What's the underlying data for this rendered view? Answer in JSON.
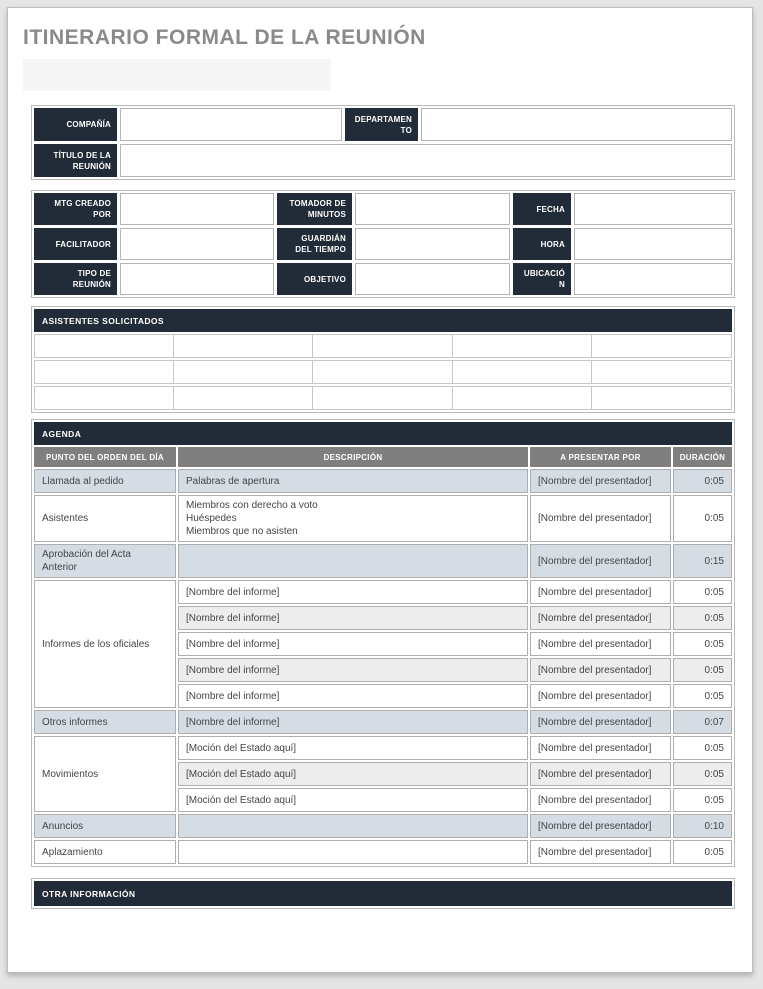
{
  "page_title": "ITINERARIO FORMAL DE LA REUNIÓN",
  "colors": {
    "dark_navy": "#222B38",
    "column_header_gray": "#7F7F7F",
    "row_blue_gray": "#D6DCE4",
    "row_alt_gray": "#EDEDED",
    "title_gray": "#8A8A8A"
  },
  "company_section": {
    "company_label": "COMPAÑÍA",
    "company_value": "",
    "department_label": "DEPARTAMEN\nTO",
    "department_value": "",
    "meeting_title_label": "TÍTULO DE LA\nREUNIÓN",
    "meeting_title_value": ""
  },
  "details_section": {
    "row1": {
      "l1": "MTG CREADO\nPOR",
      "v1": "",
      "l2": "TOMADOR DE\nMINUTOS",
      "v2": "",
      "l3": "FECHA",
      "v3": ""
    },
    "row2": {
      "l1": "FACILITADOR",
      "v1": "",
      "l2": "GUARDIÁN\nDEL TIEMPO",
      "v2": "",
      "l3": "HORA",
      "v3": ""
    },
    "row3": {
      "l1": "TIPO DE REUNIÓN",
      "v1": "",
      "l2": "OBJETIVO",
      "v2": "",
      "l3": "UBICACIÓ\nN",
      "v3": ""
    }
  },
  "attendees_section": {
    "header": "ASISTENTES SOLICITADOS",
    "rows": 3,
    "cols": 5
  },
  "agenda_section": {
    "header": "AGENDA",
    "columns": [
      "PUNTO DEL ORDEN DEL DÍA",
      "DESCRIPCIÓN",
      "A PRESENTAR POR",
      "DURACIÓN"
    ],
    "rows": [
      {
        "type": "simple",
        "shade": "blue",
        "item": "Llamada al pedido",
        "description": "Palabras de apertura",
        "presenter": "[Nombre del presentador]",
        "duration": "0:05"
      },
      {
        "type": "simple",
        "shade": "white",
        "item": "Asistentes",
        "description": "Miembros con derecho a voto\nHuéspedes\nMiembros que no asisten",
        "presenter": "[Nombre del presentador]",
        "duration": "0:05"
      },
      {
        "type": "simple",
        "shade": "blue",
        "item": "Aprobación del Acta Anterior",
        "description": "",
        "presenter": "[Nombre del presentador]",
        "duration": "0:15"
      },
      {
        "type": "group",
        "item": "Informes de los oficiales",
        "subrows": [
          {
            "shade": "white",
            "description": "[Nombre del informe]",
            "presenter": "[Nombre del presentador]",
            "duration": "0:05"
          },
          {
            "shade": "gray",
            "description": "[Nombre del informe]",
            "presenter": "[Nombre del presentador]",
            "duration": "0:05"
          },
          {
            "shade": "white",
            "description": "[Nombre del informe]",
            "presenter": "[Nombre del presentador]",
            "duration": "0:05"
          },
          {
            "shade": "gray",
            "description": "[Nombre del informe]",
            "presenter": "[Nombre del presentador]",
            "duration": "0:05"
          },
          {
            "shade": "white",
            "description": "[Nombre del informe]",
            "presenter": "[Nombre del presentador]",
            "duration": "0:05"
          }
        ]
      },
      {
        "type": "simple",
        "shade": "blue",
        "item": "Otros informes",
        "description": "[Nombre del informe]",
        "presenter": "[Nombre del presentador]",
        "duration": "0:07"
      },
      {
        "type": "group",
        "item": "Movimientos",
        "subrows": [
          {
            "shade": "white",
            "description": "[Moción del Estado aquí]",
            "presenter": "[Nombre del presentador]",
            "duration": "0:05"
          },
          {
            "shade": "gray",
            "description": "[Moción del Estado aquí]",
            "presenter": "[Nombre del presentador]",
            "duration": "0:05"
          },
          {
            "shade": "white",
            "description": "[Moción del Estado aquí]",
            "presenter": "[Nombre del presentador]",
            "duration": "0:05"
          }
        ]
      },
      {
        "type": "simple",
        "shade": "blue",
        "item": "Anuncios",
        "description": "",
        "presenter": "[Nombre del presentador]",
        "duration": "0:10"
      },
      {
        "type": "simple",
        "shade": "white",
        "item": "Aplazamiento",
        "description": "",
        "presenter": "[Nombre del presentador]",
        "duration": "0:05"
      }
    ]
  },
  "other_section": {
    "header": "OTRA INFORMACIÓN"
  }
}
